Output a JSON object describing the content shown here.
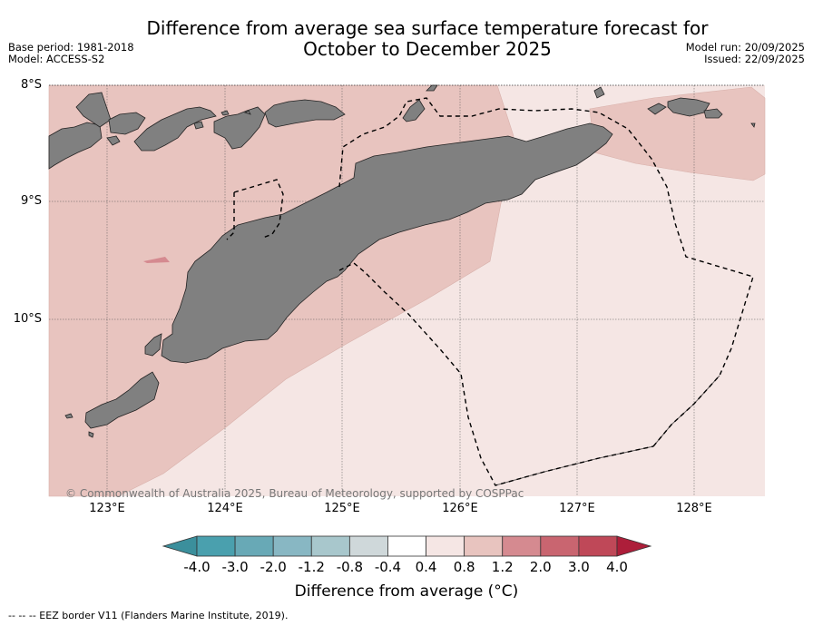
{
  "title_line1": "Difference from average sea surface temperature forecast for",
  "title_line2": "October to December 2025",
  "base_period": "Base period: 1981-2018",
  "model": "Model: ACCESS-S2",
  "model_run": "Model run: 20/09/2025",
  "issued": "Issued: 22/09/2025",
  "lat_labels": [
    "8°S",
    "9°S",
    "10°S"
  ],
  "lon_labels": [
    "123°E",
    "124°E",
    "125°E",
    "126°E",
    "127°E",
    "128°E"
  ],
  "copyright": "© Commonwealth of Australia 2025, Bureau of Meteorology, supported by COSPPac",
  "colorbar": {
    "ticks": [
      "-4.0",
      "-3.0",
      "-2.0",
      "-1.2",
      "-0.8",
      "-0.4",
      "0.4",
      "0.8",
      "1.2",
      "2.0",
      "3.0",
      "4.0"
    ],
    "colors": [
      "#4aa0ae",
      "#68a9b6",
      "#88b7c3",
      "#a8c7cc",
      "#cfd8da",
      "#ffffff",
      "#f5e6e4",
      "#e8c4bf",
      "#d58a90",
      "#c96570",
      "#bf4858"
    ],
    "under_color": "#3b8f9c",
    "over_color": "#ad1e3a",
    "label": "Difference from average (°C)"
  },
  "footer": "--  --  -- EEZ border V11 (Flanders Marine Institute, 2019).",
  "legend_colors": {
    "land": "#808080",
    "anom_0_4_0_8": "#f5e6e4",
    "anom_0_8_1_2": "#e8c4bf",
    "anom_1_2_2_0": "#d58a90"
  }
}
